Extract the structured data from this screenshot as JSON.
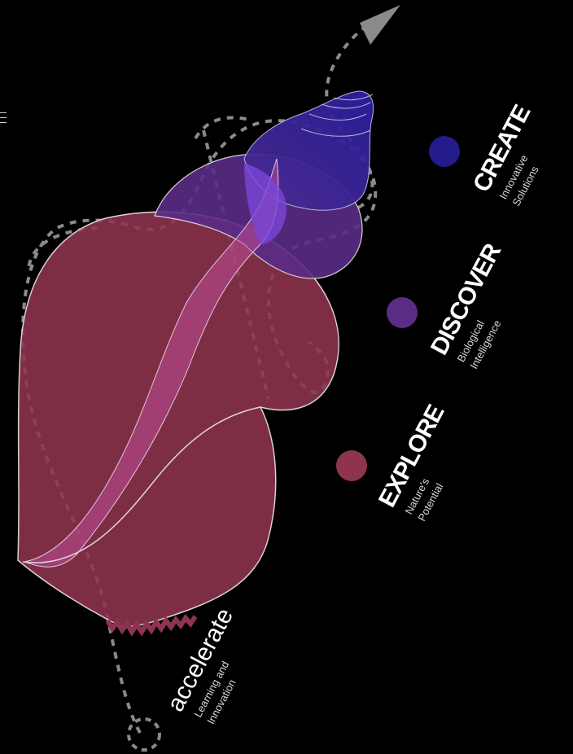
{
  "colors": {
    "background": "#000000",
    "explore": "#8e344f",
    "discover": "#5a2c86",
    "create": "#231b8a",
    "dashed_path": "#8a8a8a",
    "outline": "#d9d0d6"
  },
  "stages": [
    {
      "title": "CREATE",
      "subtitle_line1": "Innovative",
      "subtitle_line2": "Solutions"
    },
    {
      "title": "DISCOVER",
      "subtitle_line1": "Biological",
      "subtitle_line2": "Intelligence"
    },
    {
      "title": "EXPLORE",
      "subtitle_line1": "Nature’s",
      "subtitle_line2": "Potential"
    }
  ],
  "accelerate": {
    "title": "accelerate",
    "subtitle_line1": "Learning and",
    "subtitle_line2": "Innovation"
  },
  "icons": {
    "arrow": "arrow-head-icon",
    "start": "start-circle-icon",
    "corner": "menu-lines-icon"
  }
}
